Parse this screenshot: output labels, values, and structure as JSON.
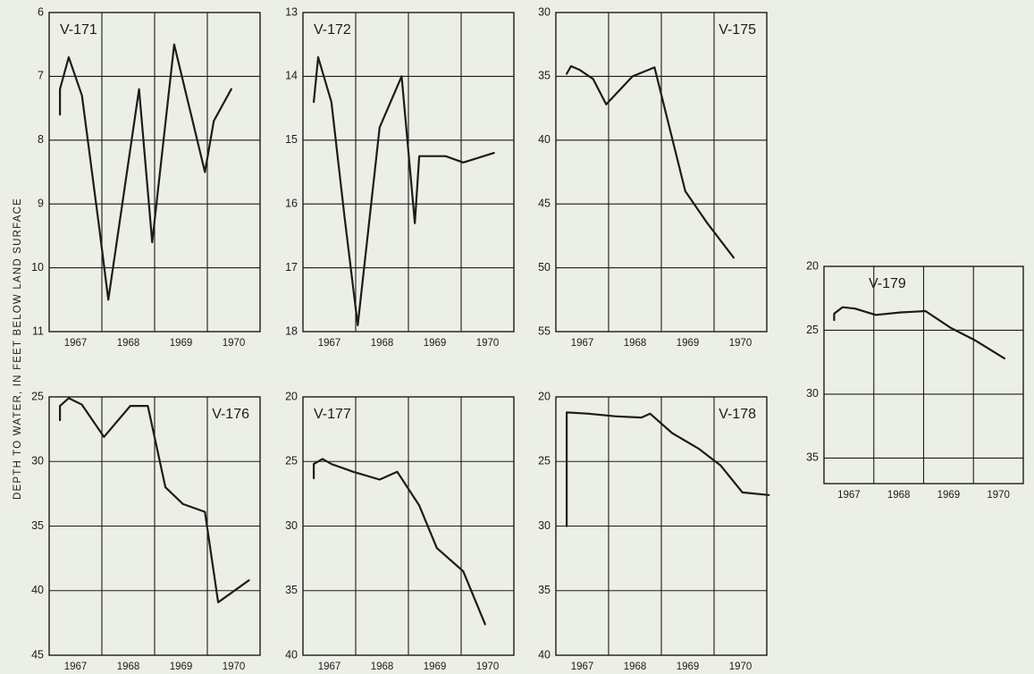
{
  "figure": {
    "ylabel": "DEPTH TO WATER, IN FEET BELOW LAND SURFACE"
  },
  "chart_data": [
    {
      "type": "line",
      "title": "V-171",
      "title_position": "top-left",
      "x_ticks": [
        "1967",
        "1968",
        "1969",
        "1970"
      ],
      "xlim": [
        "1967-01-01",
        "1971-01-01"
      ],
      "y_ticks": [
        6,
        7,
        8,
        9,
        10,
        11
      ],
      "ylim": [
        6,
        11
      ],
      "y_inverted": true,
      "grid": true,
      "x": [
        "1967-03",
        "1967-03",
        "1967-05",
        "1967-08",
        "1967-12",
        "1968-02",
        "1968-09",
        "1968-12",
        "1969-05",
        "1969-12",
        "1970-02",
        "1970-06"
      ],
      "y": [
        7.6,
        7.2,
        6.7,
        7.3,
        9.4,
        10.5,
        7.2,
        9.6,
        6.5,
        8.5,
        7.7,
        7.2
      ]
    },
    {
      "type": "line",
      "title": "V-172",
      "title_position": "top-left",
      "x_ticks": [
        "1967",
        "1968",
        "1969",
        "1970"
      ],
      "xlim": [
        "1967-01-01",
        "1971-01-01"
      ],
      "y_ticks": [
        13,
        14,
        15,
        16,
        17,
        18
      ],
      "ylim": [
        13,
        18
      ],
      "y_inverted": true,
      "grid": true,
      "x": [
        "1967-03",
        "1967-04",
        "1967-07",
        "1967-10",
        "1968-01",
        "1968-06",
        "1968-11",
        "1969-02",
        "1969-03",
        "1969-09",
        "1970-01",
        "1970-08"
      ],
      "y": [
        14.4,
        13.7,
        14.4,
        16.2,
        17.9,
        14.8,
        14.0,
        16.3,
        15.25,
        15.25,
        15.35,
        15.2
      ]
    },
    {
      "type": "line",
      "title": "V-175",
      "title_position": "top-right",
      "x_ticks": [
        "1967",
        "1968",
        "1969",
        "1970"
      ],
      "xlim": [
        "1967-01-01",
        "1971-01-01"
      ],
      "y_ticks": [
        30,
        35,
        40,
        45,
        50,
        55
      ],
      "ylim": [
        30,
        55
      ],
      "y_inverted": true,
      "grid": true,
      "x": [
        "1967-03",
        "1967-04",
        "1967-06",
        "1967-09",
        "1967-12",
        "1968-06",
        "1968-11",
        "1969-06",
        "1969-11",
        "1970-05"
      ],
      "y": [
        34.8,
        34.2,
        34.5,
        35.2,
        37.2,
        35.0,
        34.3,
        44.0,
        46.5,
        49.2
      ]
    },
    {
      "type": "line",
      "title": "V-176",
      "title_position": "top-right",
      "x_ticks": [
        "1967",
        "1968",
        "1969",
        "1970"
      ],
      "xlim": [
        "1967-01-01",
        "1971-01-01"
      ],
      "y_ticks": [
        25,
        30,
        35,
        40,
        45
      ],
      "ylim": [
        25,
        45
      ],
      "y_inverted": true,
      "grid": true,
      "x": [
        "1967-03",
        "1967-03",
        "1967-05",
        "1967-08",
        "1968-01",
        "1968-07",
        "1968-11",
        "1969-03",
        "1969-07",
        "1969-12",
        "1970-03",
        "1970-10"
      ],
      "y": [
        26.8,
        25.7,
        25.1,
        25.6,
        28.1,
        25.7,
        25.7,
        32.0,
        33.3,
        33.9,
        40.9,
        39.2
      ]
    },
    {
      "type": "line",
      "title": "V-177",
      "title_position": "top-left",
      "x_ticks": [
        "1967",
        "1968",
        "1969",
        "1970"
      ],
      "xlim": [
        "1967-01-01",
        "1971-01-01"
      ],
      "y_ticks": [
        20,
        25,
        30,
        35,
        40
      ],
      "ylim": [
        20,
        40
      ],
      "y_inverted": true,
      "grid": true,
      "x": [
        "1967-03",
        "1967-03",
        "1967-05",
        "1967-07",
        "1967-12",
        "1968-06",
        "1968-10",
        "1969-03",
        "1969-07",
        "1970-01",
        "1970-06"
      ],
      "y": [
        26.3,
        25.2,
        24.8,
        25.2,
        25.8,
        26.4,
        25.8,
        28.4,
        31.7,
        33.5,
        37.6
      ]
    },
    {
      "type": "line",
      "title": "V-178",
      "title_position": "top-right",
      "x_ticks": [
        "1967",
        "1968",
        "1969",
        "1970"
      ],
      "xlim": [
        "1967-01-01",
        "1971-01-01"
      ],
      "y_ticks": [
        20,
        25,
        30,
        35,
        40
      ],
      "ylim": [
        20,
        40
      ],
      "y_inverted": true,
      "grid": true,
      "x": [
        "1967-03",
        "1967-03",
        "1967-08",
        "1968-02",
        "1968-08",
        "1968-10",
        "1969-03",
        "1969-09",
        "1970-02",
        "1970-07",
        "1971-01"
      ],
      "y": [
        30.0,
        21.2,
        21.3,
        21.5,
        21.6,
        21.3,
        22.8,
        24.0,
        25.3,
        27.4,
        27.6
      ]
    },
    {
      "type": "line",
      "title": "V-179",
      "title_position": "top-left",
      "x_ticks": [
        "1967",
        "1968",
        "1969",
        "1970"
      ],
      "xlim": [
        "1967-01-01",
        "1971-01-01"
      ],
      "y_ticks": [
        20,
        25,
        30,
        35
      ],
      "ylim": [
        20,
        37
      ],
      "y_inverted": true,
      "grid": true,
      "x": [
        "1967-03",
        "1967-03",
        "1967-05",
        "1967-08",
        "1968-01",
        "1968-07",
        "1969-01",
        "1969-07",
        "1970-01",
        "1970-08"
      ],
      "y": [
        24.2,
        23.7,
        23.2,
        23.3,
        23.8,
        23.6,
        23.5,
        24.8,
        25.8,
        27.2
      ]
    }
  ]
}
